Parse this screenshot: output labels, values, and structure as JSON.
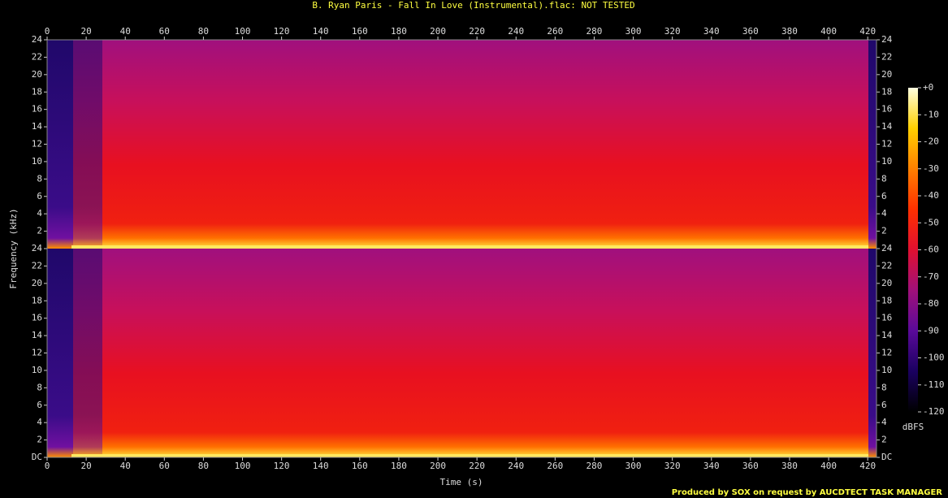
{
  "chart_data": {
    "type": "spectrogram",
    "title": "B. Ryan Paris - Fall In Love (Instrumental).flac: NOT TESTED",
    "xlabel": "Time (s)",
    "ylabel": "Frequency (kHz)",
    "xlim": [
      0,
      424.5
    ],
    "xticks": [
      0,
      20,
      40,
      60,
      80,
      100,
      120,
      140,
      160,
      180,
      200,
      220,
      240,
      260,
      280,
      300,
      320,
      340,
      360,
      380,
      400,
      420
    ],
    "channels": [
      {
        "ylim": [
          0,
          24
        ],
        "yticks": [
          2,
          4,
          6,
          8,
          10,
          12,
          14,
          16,
          18,
          20,
          22,
          24
        ]
      },
      {
        "ylim": [
          0,
          24
        ],
        "yticks": [
          {
            "value": 0,
            "label": "DC"
          },
          2,
          4,
          6,
          8,
          10,
          12,
          14,
          16,
          18,
          20,
          22,
          24
        ]
      }
    ],
    "colorbar": {
      "label": "dBFS",
      "lim": [
        -120,
        0
      ],
      "ticks": [
        {
          "value": 0,
          "label": "+0"
        },
        -10,
        -20,
        -30,
        -40,
        -50,
        -60,
        -70,
        -80,
        -90,
        -100,
        -110,
        -120
      ],
      "colors": [
        "#000000",
        "#1a0060",
        "#5a0a9a",
        "#a0107a",
        "#e01030",
        "#ff3000",
        "#ff8000",
        "#ffd000",
        "#ffffe0"
      ]
    },
    "credit": "Produced by SOX on request by AUCDTECT TASK MANAGER"
  }
}
